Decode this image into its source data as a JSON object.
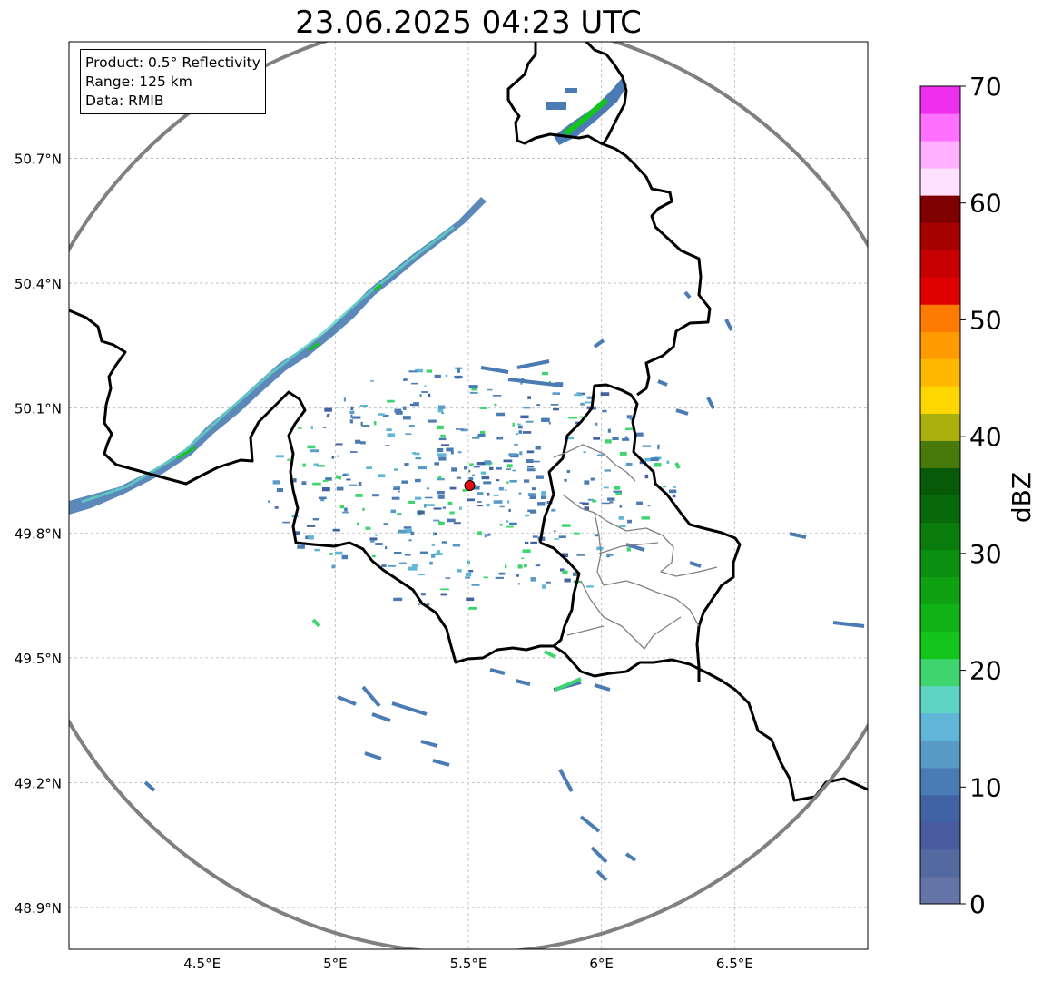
{
  "title": "23.06.2025 04:23 UTC",
  "info_box": {
    "product": "Product: 0.5° Reflectivity",
    "range": "Range: 125 km",
    "data": "Data: RMIB"
  },
  "map": {
    "lon_range": [
      4.0,
      7.0
    ],
    "lat_range": [
      48.8,
      50.98
    ],
    "x_ticks": [
      {
        "value": 4.5,
        "label": "4.5°E"
      },
      {
        "value": 5.0,
        "label": "5°E"
      },
      {
        "value": 5.5,
        "label": "5.5°E"
      },
      {
        "value": 6.0,
        "label": "6°E"
      },
      {
        "value": 6.5,
        "label": "6.5°E"
      }
    ],
    "y_ticks": [
      {
        "value": 48.9,
        "label": "48.9°N"
      },
      {
        "value": 49.2,
        "label": "49.2°N"
      },
      {
        "value": 49.5,
        "label": "49.5°N"
      },
      {
        "value": 49.8,
        "label": "49.8°N"
      },
      {
        "value": 50.1,
        "label": "50.1°N"
      },
      {
        "value": 50.4,
        "label": "50.4°N"
      },
      {
        "value": 50.7,
        "label": "50.7°N"
      }
    ],
    "radar_site": {
      "lon": 5.505,
      "lat": 49.914,
      "color": "#e01010"
    },
    "range_km": 125,
    "range_ring_color": "#808080",
    "grid": true
  },
  "colorbar": {
    "label": "dBZ",
    "min": 0,
    "max": 70,
    "ticks": [
      0,
      10,
      20,
      30,
      40,
      50,
      60,
      70
    ],
    "colors": [
      "#6574a7",
      "#53699f",
      "#4a5c9e",
      "#4263a3",
      "#4b7bb3",
      "#5a9ac7",
      "#60b6d6",
      "#5fd4c6",
      "#3ed46e",
      "#13c41b",
      "#10b316",
      "#0ea112",
      "#0b8f10",
      "#097c0d",
      "#07690a",
      "#075a07",
      "#477a0a",
      "#aab00c",
      "#ffd700",
      "#ffb800",
      "#ff9a00",
      "#ff7a00",
      "#e00000",
      "#c60000",
      "#a60000",
      "#7e0000",
      "#ffe0ff",
      "#ffb0ff",
      "#ff70ff",
      "#ee30ee"
    ]
  }
}
